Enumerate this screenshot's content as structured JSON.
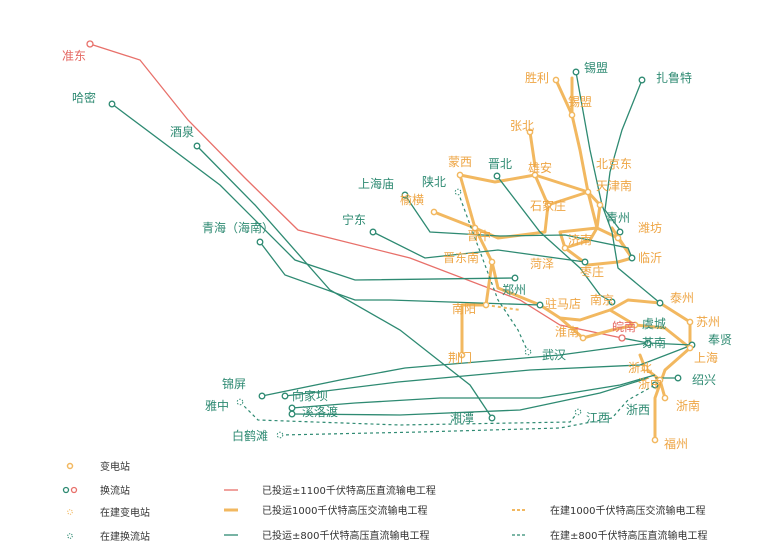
{
  "colors": {
    "red": "#e8706a",
    "orange": "#f2b860",
    "teal": "#2e8a72",
    "label_teal": "#2e8a72",
    "label_orange": "#eea544",
    "label_red": "#e56a64"
  },
  "stations": {
    "zhundong": "准东",
    "hami": "哈密",
    "jiuquan": "酒泉",
    "qinghai": "青海（海南）",
    "ningdong": "宁东",
    "shanghaimiao": "上海庙",
    "shanbei": "陕北",
    "mengxi": "蒙西",
    "yuheng": "榆横",
    "jinbei": "晋北",
    "zhangbei": "张北",
    "xiongan": "雄安",
    "shijiazhuang": "石家庄",
    "shengli": "胜利",
    "ximeng": "锡盟",
    "ximeng2": "锡盟",
    "zhaluteqi": "扎鲁特",
    "beijingdong": "北京东",
    "tianjinnan": "天津南",
    "qingzhou": "青州",
    "weifang": "潍坊",
    "linyi": "临沂",
    "jinan": "济南",
    "jinzhong": "晋中",
    "jindongnan": "晋东南",
    "heze": "菏泽",
    "zaozhuang": "枣庄",
    "zhengzhou": "郑州",
    "zhumadian": "驻马店",
    "nanyang": "南阳",
    "jingmen": "荆门",
    "wuhan": "武汉",
    "nanjing": "南京",
    "taizhou": "泰州",
    "huainan": "淮南",
    "wannan": "皖南",
    "yucheng": "虞城",
    "sunan": "苏南",
    "suzhou": "苏州",
    "fengxian": "奉贤",
    "shanghai": "上海",
    "zhebei": "浙北",
    "zhezhong": "浙中",
    "shaoxing": "绍兴",
    "zhexi": "浙西",
    "zhenan": "浙南",
    "fuzhou": "福州",
    "jinping": "锦屏",
    "xiangjiaba": "向家坝",
    "yazhong": "雅中",
    "xiluodu": "溪洛渡",
    "xiangtan": "湘潭",
    "jiangxi": "江西",
    "baihetan": "白鹤滩"
  },
  "legend": {
    "substation": "变电站",
    "converter": "换流站",
    "sub_building": "在建变电站",
    "conv_building": "在建换流站",
    "l1100": "已投运±1100千伏特高压直流输电工程",
    "l1000": "已投运1000千伏特高压交流输电工程",
    "l800": "已投运±800千伏特高压直流输电工程",
    "b1000": "在建1000千伏特高压交流输电工程",
    "b800": "在建±800千伏特高压直流输电工程"
  }
}
